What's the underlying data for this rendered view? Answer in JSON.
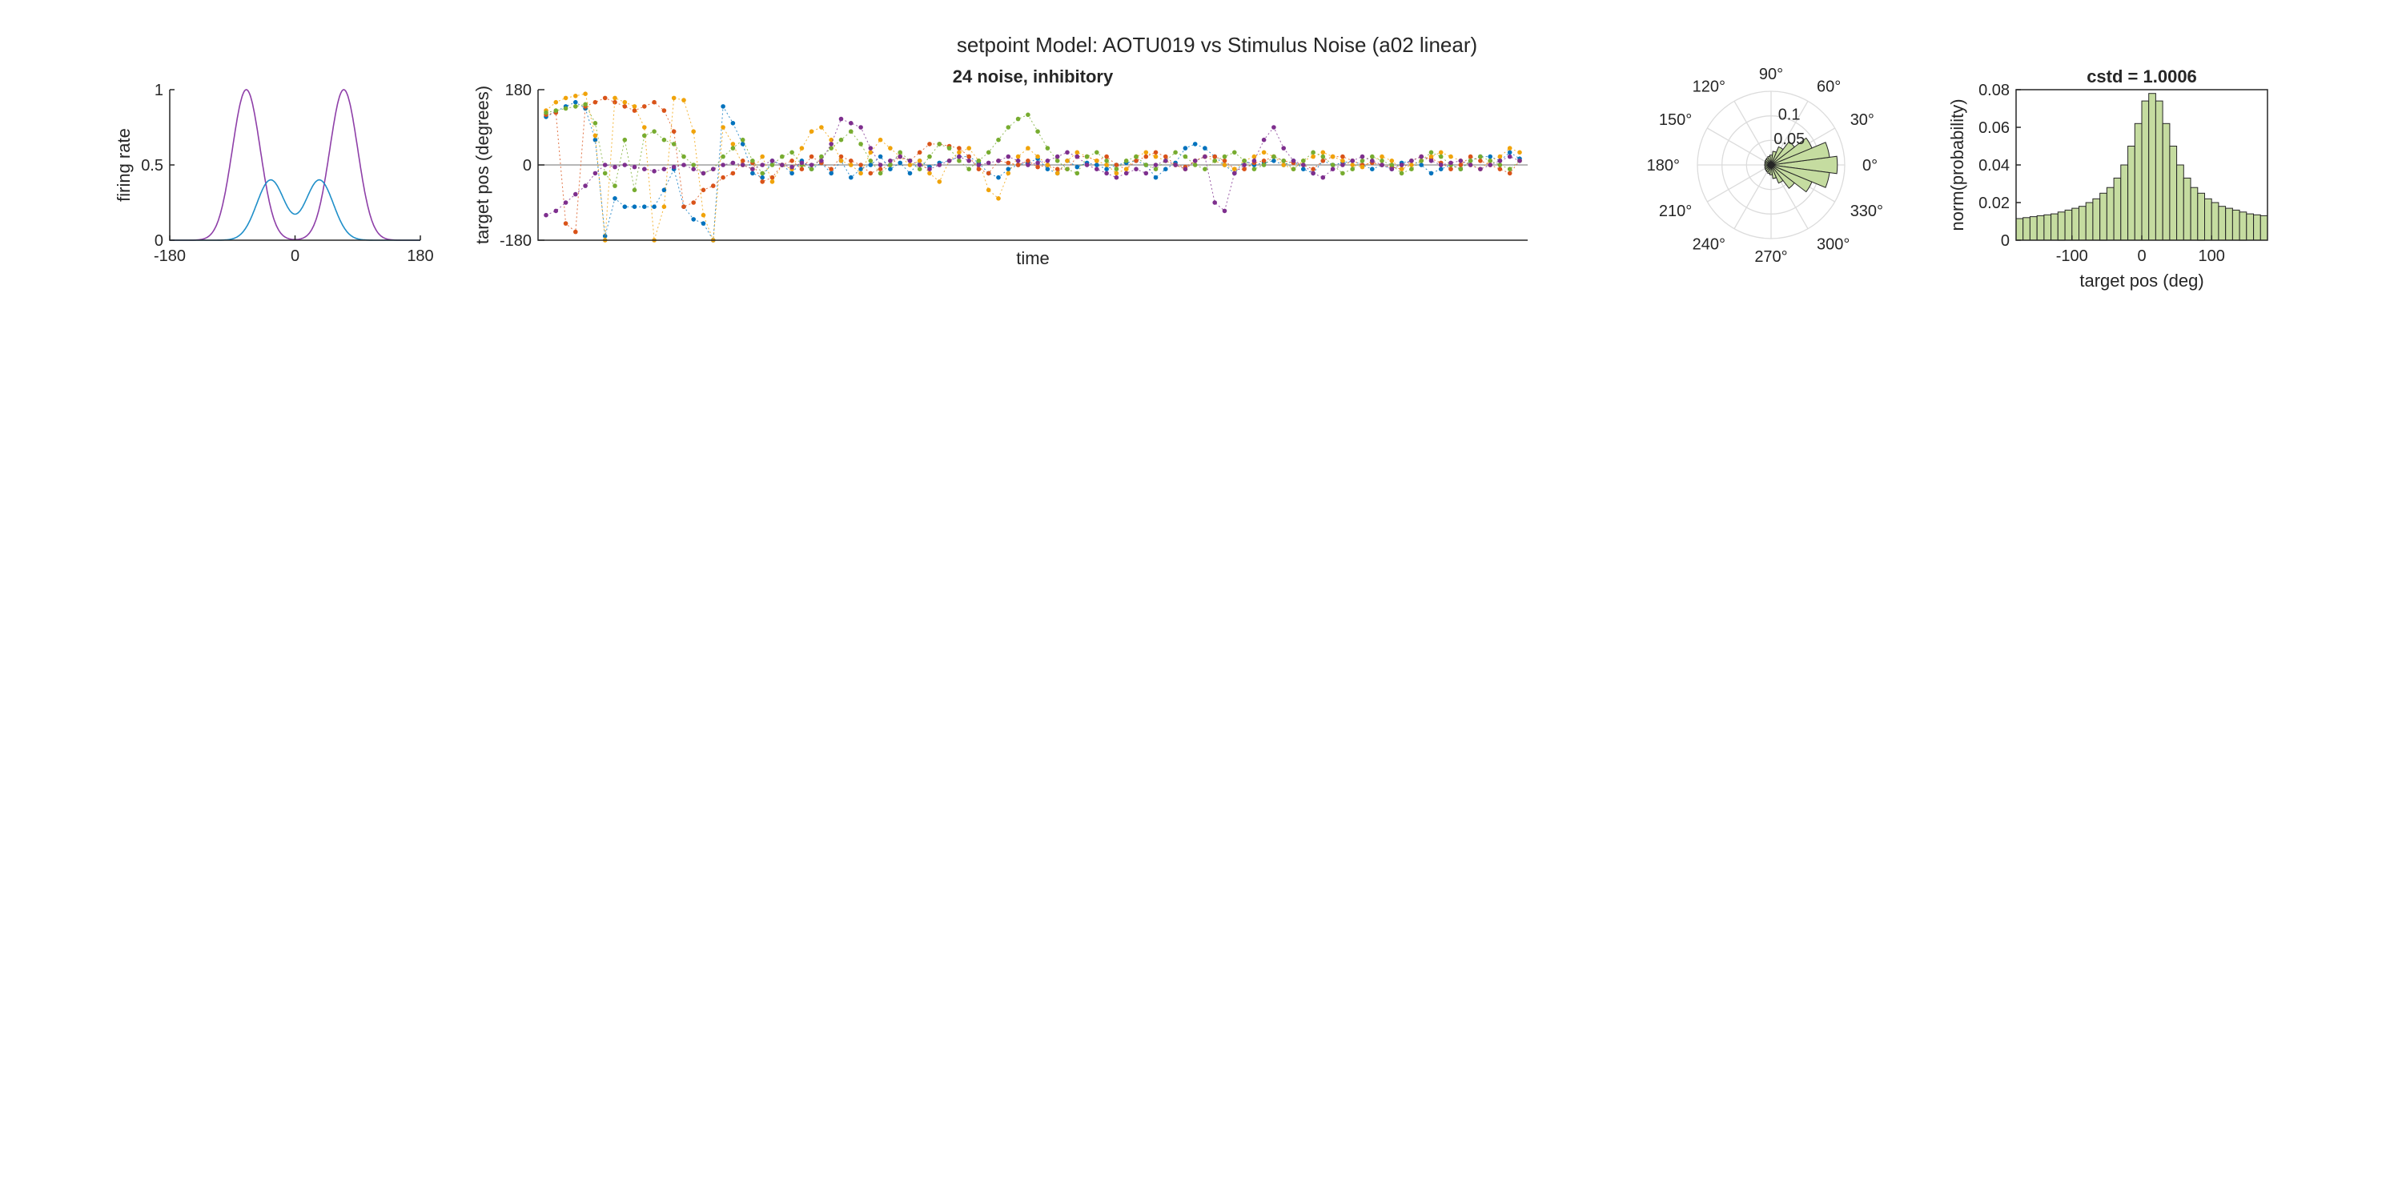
{
  "figure": {
    "title": "setpoint Model: AOTU019 vs Stimulus Noise (a02 linear)"
  },
  "chart_data": [
    {
      "type": "line",
      "panel": "tuning",
      "title": "",
      "xlabel": "",
      "ylabel": "firing rate",
      "xlim": [
        -180,
        180
      ],
      "ylim": [
        0,
        1
      ],
      "xticks": [
        "-180",
        "0",
        "180"
      ],
      "yticks": [
        "0",
        "0.5",
        "1"
      ],
      "series": [
        {
          "color": "#8e3fa8",
          "shape": "gaussian",
          "peaks": [
            {
              "center": -70,
              "amplitude": 1.0,
              "width": 20
            },
            {
              "center": 70,
              "amplitude": 1.0,
              "width": 20
            }
          ]
        },
        {
          "color": "#1f8fc9",
          "shape": "gaussian",
          "peaks": [
            {
              "center": -35,
              "amplitude": 0.4,
              "width": 20
            },
            {
              "center": 35,
              "amplitude": 0.4,
              "width": 20
            }
          ]
        }
      ]
    },
    {
      "type": "scatter",
      "panel": "trajectories",
      "title": "24 noise, inhibitory",
      "xlabel": "time",
      "ylabel": "target pos (degrees)",
      "xlim": [
        0,
        100
      ],
      "ylim": [
        -180,
        180
      ],
      "yticks": [
        "-180",
        "0",
        "180"
      ],
      "series": [
        {
          "color": "#0072bd",
          "y": [
            115,
            128,
            140,
            150,
            135,
            60,
            -170,
            -80,
            -100,
            -100,
            -100,
            -100,
            -60,
            -10,
            -100,
            -130,
            -140,
            -180,
            140,
            100,
            50,
            -20,
            -30,
            10,
            0,
            -20,
            10,
            -10,
            5,
            -20,
            10,
            -30,
            -10,
            0,
            20,
            -10,
            5,
            -20,
            10,
            -5,
            5,
            10,
            20,
            20,
            5,
            -20,
            -30,
            -10,
            0,
            5,
            15,
            -10,
            -20,
            10,
            -5,
            5,
            0,
            -10,
            0,
            5,
            10,
            0,
            -30,
            -10,
            5,
            40,
            50,
            40,
            20,
            0,
            -20,
            10,
            0,
            5,
            10,
            0,
            10,
            -10,
            -20,
            10,
            0,
            5,
            10,
            0,
            -10,
            0,
            -10,
            5,
            10,
            0,
            -20,
            -10,
            0,
            -10,
            10,
            20,
            20,
            10,
            30,
            15
          ]
        },
        {
          "color": "#d95319",
          "y": [
            120,
            125,
            -140,
            -160,
            140,
            150,
            160,
            150,
            140,
            130,
            140,
            150,
            130,
            80,
            -100,
            -90,
            -60,
            -50,
            -30,
            -20,
            10,
            5,
            -40,
            -30,
            0,
            10,
            -10,
            20,
            5,
            -10,
            20,
            10,
            0,
            -20,
            -10,
            0,
            20,
            10,
            30,
            50,
            50,
            45,
            40,
            20,
            -10,
            -20,
            10,
            5,
            0,
            10,
            -5,
            0,
            -10,
            -10,
            20,
            20,
            10,
            20,
            0,
            -10,
            10,
            20,
            30,
            20,
            0,
            -5,
            10,
            20,
            20,
            10,
            -10,
            -10,
            5,
            10,
            20,
            10,
            5,
            0,
            -10,
            10,
            20,
            20,
            10,
            0,
            5,
            0,
            -5,
            -10,
            10,
            20,
            15,
            5,
            -10,
            0,
            20,
            10,
            0,
            -10,
            -20,
            10
          ]
        },
        {
          "color": "#f0a30a",
          "y": [
            130,
            150,
            160,
            165,
            170,
            70,
            -180,
            160,
            150,
            140,
            90,
            -180,
            -100,
            160,
            155,
            80,
            -120,
            -180,
            90,
            50,
            0,
            -10,
            20,
            -40,
            0,
            -10,
            40,
            80,
            90,
            60,
            10,
            0,
            -20,
            30,
            60,
            40,
            20,
            0,
            10,
            -20,
            -40,
            10,
            30,
            40,
            10,
            -60,
            -80,
            -20,
            20,
            40,
            20,
            0,
            -20,
            10,
            30,
            20,
            10,
            0,
            -20,
            -10,
            20,
            30,
            20,
            10,
            0,
            -10,
            10,
            20,
            10,
            0,
            -10,
            10,
            20,
            30,
            20,
            0,
            -10,
            10,
            20,
            30,
            20,
            10,
            0,
            -5,
            10,
            20,
            10,
            -10,
            0,
            10,
            20,
            30,
            20,
            10,
            0,
            -10,
            10,
            20,
            40,
            30
          ]
        },
        {
          "color": "#77ac30",
          "y": [
            125,
            130,
            135,
            140,
            145,
            100,
            -20,
            -50,
            60,
            -60,
            70,
            80,
            60,
            50,
            20,
            0,
            -20,
            -10,
            20,
            40,
            60,
            10,
            -20,
            0,
            20,
            30,
            0,
            -10,
            20,
            40,
            60,
            80,
            50,
            10,
            -20,
            0,
            30,
            10,
            -10,
            20,
            50,
            40,
            10,
            -10,
            10,
            30,
            60,
            90,
            110,
            120,
            80,
            40,
            10,
            -10,
            -20,
            20,
            30,
            10,
            -10,
            10,
            20,
            0,
            -10,
            10,
            30,
            20,
            0,
            -10,
            10,
            20,
            30,
            10,
            -10,
            0,
            20,
            10,
            -10,
            10,
            30,
            20,
            0,
            -20,
            -10,
            10,
            20,
            10,
            0,
            -20,
            -10,
            10,
            30,
            20,
            0,
            -10,
            10,
            20,
            10,
            0,
            -10,
            10
          ]
        },
        {
          "color": "#7e2f8e",
          "y": [
            -120,
            -110,
            -90,
            -70,
            -50,
            -20,
            0,
            -5,
            0,
            -5,
            -10,
            -15,
            -10,
            -5,
            0,
            -10,
            -20,
            -10,
            0,
            5,
            0,
            -10,
            0,
            10,
            0,
            -5,
            5,
            0,
            10,
            50,
            110,
            100,
            90,
            40,
            0,
            10,
            20,
            10,
            0,
            -10,
            0,
            10,
            20,
            10,
            0,
            5,
            10,
            20,
            10,
            0,
            5,
            10,
            20,
            30,
            20,
            0,
            -10,
            -20,
            -30,
            -20,
            -10,
            -20,
            0,
            10,
            0,
            -10,
            10,
            20,
            -90,
            -110,
            -20,
            0,
            10,
            60,
            90,
            40,
            10,
            0,
            -20,
            -30,
            -10,
            0,
            10,
            20,
            10,
            0,
            -10,
            0,
            10,
            20,
            10,
            0,
            5,
            10,
            0,
            -10,
            0,
            10,
            20,
            10
          ]
        }
      ]
    },
    {
      "type": "polar-histogram",
      "panel": "rose",
      "title": "",
      "theta_ticks": [
        "0°",
        "30°",
        "60°",
        "90°",
        "120°",
        "150°",
        "180°",
        "210°",
        "240°",
        "270°",
        "300°",
        "330°"
      ],
      "r_ticks": [
        "0.05",
        "0.1"
      ],
      "r_max": 0.15,
      "bin_width_deg": 15,
      "bins": [
        {
          "center": 0,
          "value": 0.135
        },
        {
          "center": 15,
          "value": 0.12
        },
        {
          "center": 30,
          "value": 0.09
        },
        {
          "center": 45,
          "value": 0.06
        },
        {
          "center": 60,
          "value": 0.04
        },
        {
          "center": 75,
          "value": 0.028
        },
        {
          "center": 90,
          "value": 0.02
        },
        {
          "center": 105,
          "value": 0.018
        },
        {
          "center": 120,
          "value": 0.016
        },
        {
          "center": 135,
          "value": 0.015
        },
        {
          "center": 150,
          "value": 0.014
        },
        {
          "center": 165,
          "value": 0.013
        },
        {
          "center": 180,
          "value": 0.013
        },
        {
          "center": 195,
          "value": 0.013
        },
        {
          "center": 210,
          "value": 0.014
        },
        {
          "center": 225,
          "value": 0.015
        },
        {
          "center": 240,
          "value": 0.016
        },
        {
          "center": 255,
          "value": 0.018
        },
        {
          "center": 270,
          "value": 0.02
        },
        {
          "center": 285,
          "value": 0.028
        },
        {
          "center": 300,
          "value": 0.04
        },
        {
          "center": 315,
          "value": 0.06
        },
        {
          "center": 330,
          "value": 0.09
        },
        {
          "center": 345,
          "value": 0.12
        }
      ],
      "fill": "#c5dca0"
    },
    {
      "type": "bar",
      "panel": "histogram",
      "title": "cstd = 1.0006",
      "xlabel": "target pos (deg)",
      "ylabel": "norm(probability)",
      "xlim": [
        -180,
        180
      ],
      "ylim": [
        0,
        0.08
      ],
      "xticks": [
        "-100",
        "0",
        "100"
      ],
      "xtick_values": [
        -100,
        0,
        100
      ],
      "yticks": [
        "0",
        "0.02",
        "0.04",
        "0.06",
        "0.08"
      ],
      "bin_width": 10,
      "bin_centers": [
        -175,
        -165,
        -155,
        -145,
        -135,
        -125,
        -115,
        -105,
        -95,
        -85,
        -75,
        -65,
        -55,
        -45,
        -35,
        -25,
        -15,
        -5,
        5,
        15,
        25,
        35,
        45,
        55,
        65,
        75,
        85,
        95,
        105,
        115,
        125,
        135,
        145,
        155,
        165,
        175
      ],
      "values": [
        0.0115,
        0.012,
        0.0125,
        0.013,
        0.0135,
        0.014,
        0.015,
        0.016,
        0.017,
        0.018,
        0.02,
        0.022,
        0.025,
        0.028,
        0.033,
        0.04,
        0.05,
        0.062,
        0.074,
        0.078,
        0.074,
        0.062,
        0.05,
        0.04,
        0.033,
        0.028,
        0.025,
        0.022,
        0.02,
        0.018,
        0.017,
        0.016,
        0.015,
        0.014,
        0.0135,
        0.013
      ],
      "fill": "#c5dca0"
    }
  ]
}
